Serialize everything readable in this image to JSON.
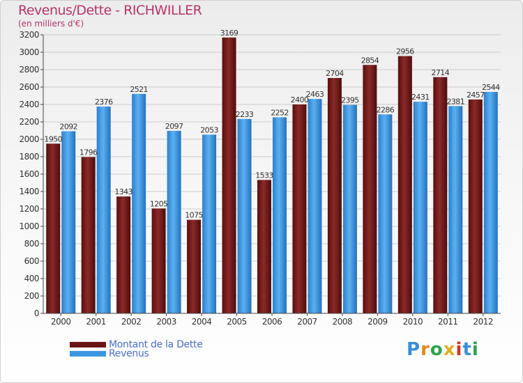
{
  "chart_data": {
    "type": "bar",
    "title": "Revenus/Dette - RICHWILLER",
    "subtitle": "(en milliers d'€)",
    "categories": [
      "2000",
      "2001",
      "2002",
      "2003",
      "2004",
      "2005",
      "2006",
      "2007",
      "2008",
      "2009",
      "2010",
      "2011",
      "2012"
    ],
    "series": [
      {
        "name": "Montant de la Dette",
        "color": "#7a1c1c",
        "values": [
          1950,
          1796,
          1343,
          1205,
          1075,
          3169,
          1533,
          2400,
          2704,
          2854,
          2956,
          2714,
          2457
        ]
      },
      {
        "name": "Revenus",
        "color": "#3a96e0",
        "values": [
          2092,
          2376,
          2521,
          2097,
          2053,
          2233,
          2252,
          2463,
          2395,
          2286,
          2431,
          2381,
          2544
        ]
      }
    ],
    "yticks": [
      0,
      200,
      400,
      600,
      800,
      1000,
      1200,
      1400,
      1600,
      1800,
      2000,
      2200,
      2400,
      2600,
      2800,
      3000,
      3200
    ],
    "ylim": [
      0,
      3200
    ],
    "grid": true,
    "legend": "bottom-left"
  },
  "brand": {
    "letters": [
      "P",
      "r",
      "o",
      "x",
      "i",
      "t",
      "i"
    ],
    "colors": [
      "#3a8fd8",
      "#e08a1e",
      "#2aa34a",
      "#e0b020",
      "#d8302a",
      "#3a8fd8",
      "#2aa34a"
    ]
  }
}
